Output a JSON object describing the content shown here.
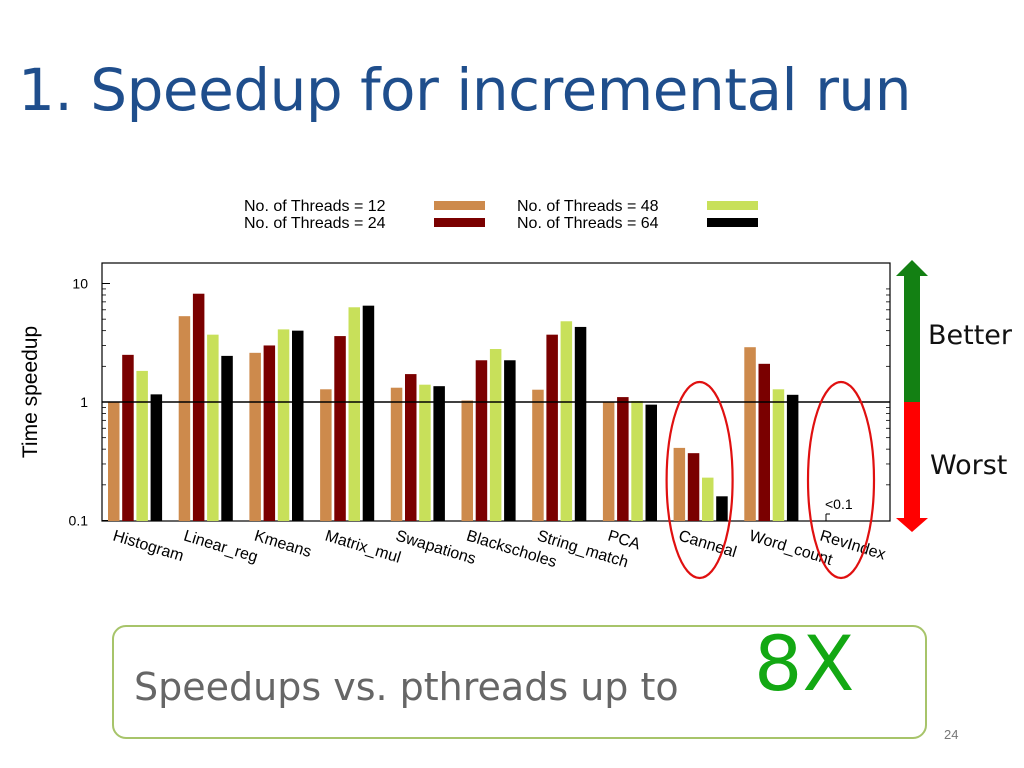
{
  "slide": {
    "title": "1. Speedup for incremental run",
    "better_label": "Better",
    "worst_label": "Worst",
    "callout_text": "Speedups vs. pthreads up to",
    "callout_highlight": "8X",
    "page_number": "24",
    "colors": {
      "title": "#1f4e8c",
      "better_arrow": "#138013",
      "worst_arrow": "#ff0000",
      "highlight": "#13a813",
      "callout_border": "#a7c46a",
      "circle": "#e01010"
    }
  },
  "chart_data": {
    "type": "bar",
    "y_scale": "log",
    "ylabel": "Time speedup",
    "ylim": [
      0.1,
      10
    ],
    "yticks": [
      "10",
      "1",
      "0.1"
    ],
    "reference_line": 1,
    "annotation": "<0.1",
    "annotation_category": "RevIndex",
    "highlighted_categories": [
      "Canneal",
      "RevIndex"
    ],
    "categories": [
      "Histogram",
      "Linear_reg",
      "Kmeans",
      "Matrix_mul",
      "Swapations",
      "Blackscholes",
      "String_match",
      "PCA",
      "Canneal",
      "Word_count",
      "RevIndex"
    ],
    "series": [
      {
        "name": "No. of Threads = 12",
        "color": "#cd8a4c",
        "values": [
          1.0,
          5.3,
          2.6,
          1.28,
          1.32,
          1.03,
          1.27,
          1.0,
          0.41,
          2.9,
          null
        ]
      },
      {
        "name": "No. of Threads = 24",
        "color": "#7a0000",
        "values": [
          2.5,
          8.2,
          3.0,
          3.6,
          1.72,
          2.25,
          3.7,
          1.1,
          0.37,
          2.1,
          null
        ]
      },
      {
        "name": "No. of Threads = 48",
        "color": "#c8e05a",
        "values": [
          1.83,
          3.7,
          4.1,
          6.3,
          1.4,
          2.8,
          4.8,
          1.02,
          0.23,
          1.28,
          null
        ]
      },
      {
        "name": "No. of Threads = 64",
        "color": "#000000",
        "values": [
          1.16,
          2.45,
          4.0,
          6.5,
          1.36,
          2.25,
          4.3,
          0.95,
          0.16,
          1.15,
          null
        ]
      }
    ]
  }
}
